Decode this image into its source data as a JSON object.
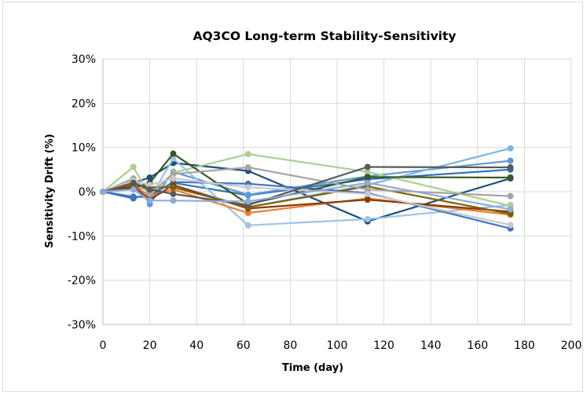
{
  "chart_data": {
    "type": "line",
    "title": "AQ3CO Long-term Stability-Sensitivity",
    "xlabel": "Time (day)",
    "ylabel": "Sensitivity Drift (%)",
    "xlim": [
      0,
      200
    ],
    "ylim": [
      -30,
      30
    ],
    "x_ticks": [
      0,
      20,
      40,
      60,
      80,
      100,
      120,
      140,
      160,
      180,
      200
    ],
    "y_ticks": [
      -30,
      -20,
      -10,
      0,
      10,
      20,
      30
    ],
    "x_tick_labels": [
      "0",
      "20",
      "40",
      "60",
      "80",
      "100",
      "120",
      "140",
      "160",
      "180",
      "200"
    ],
    "y_tick_labels": [
      "-30%",
      "-20%",
      "-10%",
      "0%",
      "10%",
      "20%",
      "30%"
    ],
    "grid": true,
    "legend": "none",
    "x": [
      0,
      13,
      20,
      30,
      62,
      113,
      174
    ],
    "series": [
      {
        "color": "#1f4e79",
        "values": [
          0,
          2.0,
          3.2,
          6.5,
          4.7,
          -6.7,
          3.0
        ]
      },
      {
        "color": "#2e75b6",
        "values": [
          0,
          -1.5,
          -0.5,
          2.0,
          -0.8,
          2.8,
          5.0
        ]
      },
      {
        "color": "#5b9bd5",
        "values": [
          0,
          2.8,
          -2.8,
          4.5,
          -0.7,
          3.5,
          7.0
        ]
      },
      {
        "color": "#7fb2e0",
        "values": [
          0,
          1.0,
          0.5,
          1.5,
          -3.5,
          1.5,
          9.8
        ]
      },
      {
        "color": "#9dc3e6",
        "values": [
          0,
          -1.0,
          -1.5,
          7.5,
          -7.6,
          -6.2,
          -3.0
        ]
      },
      {
        "color": "#4472c4",
        "values": [
          0,
          -1.2,
          -1.0,
          2.2,
          1.8,
          -0.3,
          -8.3
        ]
      },
      {
        "color": "#a9d18e",
        "values": [
          0,
          5.6,
          -0.8,
          4.3,
          8.5,
          4.5,
          -3.2
        ]
      },
      {
        "color": "#385723",
        "values": [
          0,
          0.8,
          2.0,
          8.6,
          -2.8,
          3.3,
          3.2
        ]
      },
      {
        "color": "#ed7d31",
        "values": [
          0,
          1.5,
          -1.0,
          0.5,
          -4.8,
          -1.5,
          -5.2
        ]
      },
      {
        "color": "#843c0c",
        "values": [
          0,
          1.2,
          -1.8,
          1.5,
          -3.8,
          -1.8,
          -4.5
        ]
      },
      {
        "color": "#7f6000",
        "values": [
          0,
          1.8,
          1.0,
          1.0,
          -3.5,
          1.2,
          -5.0
        ]
      },
      {
        "color": "#a5a5a5",
        "values": [
          0,
          3.0,
          -0.5,
          4.0,
          5.5,
          0.5,
          -1.0
        ]
      },
      {
        "color": "#c9c9c9",
        "values": [
          0,
          2.5,
          1.5,
          3.0,
          1.0,
          -0.5,
          -7.5
        ]
      },
      {
        "color": "#595959",
        "values": [
          0,
          2.0,
          0.5,
          -0.5,
          -3.0,
          5.6,
          5.5
        ]
      },
      {
        "color": "#8faadc",
        "values": [
          0,
          0.5,
          -2.0,
          -2.0,
          -2.2,
          2.0,
          -4.0
        ]
      }
    ]
  }
}
